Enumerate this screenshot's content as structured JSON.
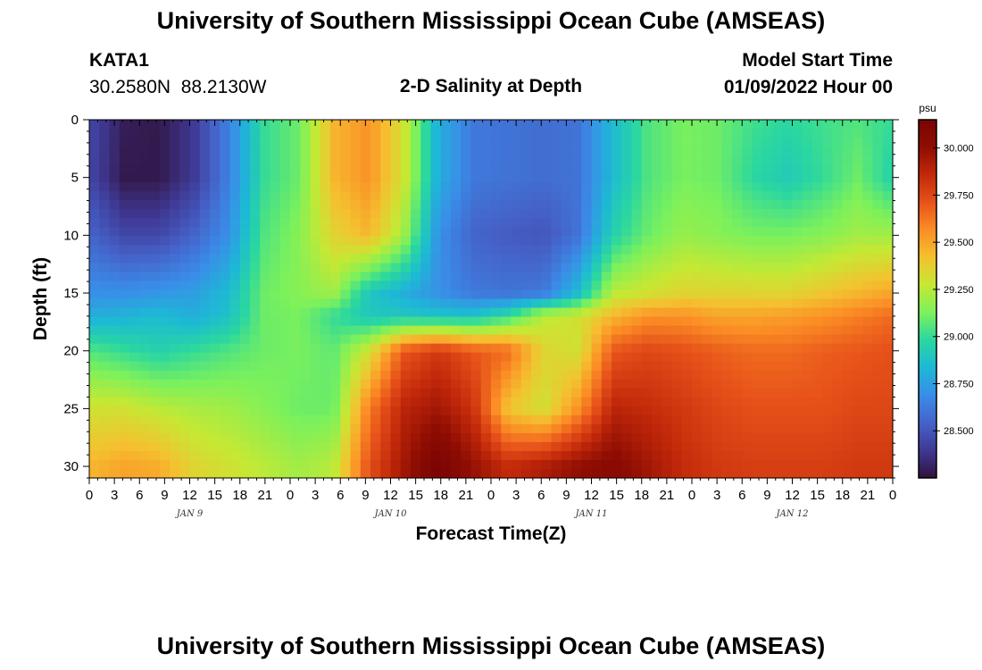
{
  "page": {
    "title": "University of Southern Mississippi Ocean Cube (AMSEAS)",
    "station_id": "KATA1",
    "station_coords": "30.2580N  88.2130W",
    "subtitle": "2-D Salinity at Depth",
    "model_start_label": "Model Start Time",
    "model_start_value": "01/09/2022 Hour 00",
    "footer_title": "University of Southern Mississippi Ocean Cube (AMSEAS)"
  },
  "chart_data": {
    "type": "heatmap",
    "title": "2-D Salinity at Depth",
    "xlabel": "Forecast Time(Z)",
    "ylabel": "Depth (ft)",
    "xlim": [
      0,
      96
    ],
    "ylim": [
      0,
      31
    ],
    "y_inverted": true,
    "x_tick_labels": [
      "0",
      "3",
      "6",
      "9",
      "12",
      "15",
      "18",
      "21",
      "0",
      "3",
      "6",
      "9",
      "12",
      "15",
      "18",
      "21",
      "0",
      "3",
      "6",
      "9",
      "12",
      "15",
      "18",
      "21",
      "0",
      "3",
      "6",
      "9",
      "12",
      "15",
      "18",
      "21",
      "0"
    ],
    "x_day_labels": [
      {
        "label": "JAN 9",
        "hour": 12
      },
      {
        "label": "JAN 10",
        "hour": 36
      },
      {
        "label": "JAN 11",
        "hour": 60
      },
      {
        "label": "JAN 12",
        "hour": 84
      }
    ],
    "y_ticks": [
      0,
      5,
      10,
      15,
      20,
      25,
      30
    ],
    "colorbar": {
      "unit": "psu",
      "min": 28.25,
      "max": 30.15,
      "ticks": [
        "28.500",
        "28.750",
        "29.000",
        "29.250",
        "29.500",
        "29.750",
        "30.000"
      ],
      "colors": [
        "#30123b",
        "#3f3994",
        "#4562c9",
        "#3a8de8",
        "#1db8d6",
        "#2ad7a0",
        "#7cf15b",
        "#c6e833",
        "#f4c130",
        "#fb8d25",
        "#e7521a",
        "#c2290a",
        "#8f0d03",
        "#7a0403"
      ]
    },
    "x_hours": [
      0,
      3,
      6,
      9,
      12,
      15,
      18,
      21,
      24,
      27,
      30,
      33,
      36,
      39,
      42,
      45,
      48,
      51,
      54,
      57,
      60,
      63,
      66,
      69,
      72,
      75,
      78,
      81,
      84,
      87,
      90,
      93,
      96
    ],
    "depths_ft": [
      0,
      5,
      10,
      15,
      17,
      20,
      25,
      30
    ],
    "salinity_psu": [
      [
        28.45,
        28.3,
        28.28,
        28.4,
        28.65,
        29.0,
        29.1,
        29.45,
        29.55,
        29.3,
        28.8,
        28.62,
        28.6,
        28.58,
        28.6,
        28.85,
        29.05,
        29.12,
        29.1,
        29.02,
        28.98,
        29.02,
        29.05,
        29.0
      ],
      [
        28.45,
        28.28,
        28.28,
        28.4,
        28.65,
        29.0,
        29.1,
        29.45,
        29.55,
        29.3,
        28.8,
        28.62,
        28.6,
        28.58,
        28.6,
        28.85,
        29.05,
        29.12,
        29.1,
        28.98,
        28.92,
        29.0,
        29.1,
        28.95
      ],
      [
        28.55,
        28.45,
        28.45,
        28.55,
        28.7,
        29.05,
        29.15,
        29.35,
        29.45,
        29.2,
        28.7,
        28.55,
        28.52,
        28.5,
        28.6,
        28.95,
        29.1,
        29.18,
        29.15,
        29.12,
        29.12,
        29.15,
        29.2,
        29.2
      ],
      [
        28.7,
        28.7,
        28.72,
        28.75,
        28.85,
        29.1,
        29.15,
        29.2,
        28.9,
        28.8,
        28.7,
        28.62,
        28.6,
        28.62,
        28.85,
        29.25,
        29.3,
        29.35,
        29.35,
        29.35,
        29.35,
        29.4,
        29.45,
        29.5
      ],
      [
        28.8,
        28.82,
        28.85,
        28.8,
        28.88,
        29.1,
        29.12,
        29.0,
        28.9,
        28.9,
        28.88,
        28.88,
        29.0,
        29.25,
        29.3,
        29.45,
        29.55,
        29.55,
        29.5,
        29.5,
        29.52,
        29.55,
        29.6,
        29.65
      ],
      [
        29.05,
        29.0,
        28.95,
        29.0,
        29.05,
        29.1,
        29.12,
        29.08,
        29.3,
        29.7,
        29.8,
        29.7,
        29.65,
        29.35,
        29.3,
        29.7,
        29.75,
        29.72,
        29.68,
        29.65,
        29.65,
        29.68,
        29.7,
        29.72
      ],
      [
        29.3,
        29.3,
        29.25,
        29.22,
        29.2,
        29.15,
        29.1,
        29.1,
        29.6,
        29.88,
        29.95,
        29.82,
        29.4,
        29.3,
        29.55,
        29.88,
        29.85,
        29.8,
        29.75,
        29.72,
        29.72,
        29.72,
        29.75,
        29.75
      ],
      [
        29.45,
        29.5,
        29.48,
        29.35,
        29.3,
        29.25,
        29.2,
        29.25,
        29.72,
        29.95,
        30.15,
        29.98,
        29.85,
        29.92,
        30.0,
        30.05,
        29.95,
        29.85,
        29.8,
        29.78,
        29.78,
        29.78,
        29.8,
        29.8
      ]
    ]
  }
}
